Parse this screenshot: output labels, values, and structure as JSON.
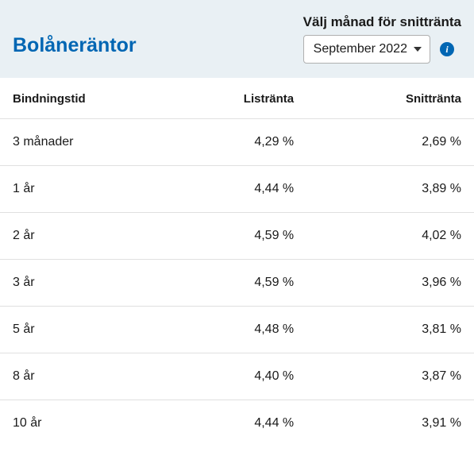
{
  "header": {
    "title": "Bolåneräntor",
    "selector_label": "Välj månad för snittränta",
    "selected_month": "September 2022"
  },
  "table": {
    "columns": [
      "Bindningstid",
      "Listränta",
      "Snittränta"
    ],
    "rows": [
      [
        "3 månader",
        "4,29 %",
        "2,69 %"
      ],
      [
        "1 år",
        "4,44 %",
        "3,89 %"
      ],
      [
        "2 år",
        "4,59 %",
        "4,02 %"
      ],
      [
        "3 år",
        "4,59 %",
        "3,96 %"
      ],
      [
        "5 år",
        "4,48 %",
        "3,81 %"
      ],
      [
        "8 år",
        "4,40 %",
        "3,87 %"
      ],
      [
        "10 år",
        "4,44 %",
        "3,91 %"
      ]
    ]
  },
  "colors": {
    "header_bg": "#e9f0f4",
    "title_color": "#0066b3",
    "text_color": "#1a1a1a",
    "border_color": "#e0e0e0",
    "info_bg": "#0066b3"
  }
}
